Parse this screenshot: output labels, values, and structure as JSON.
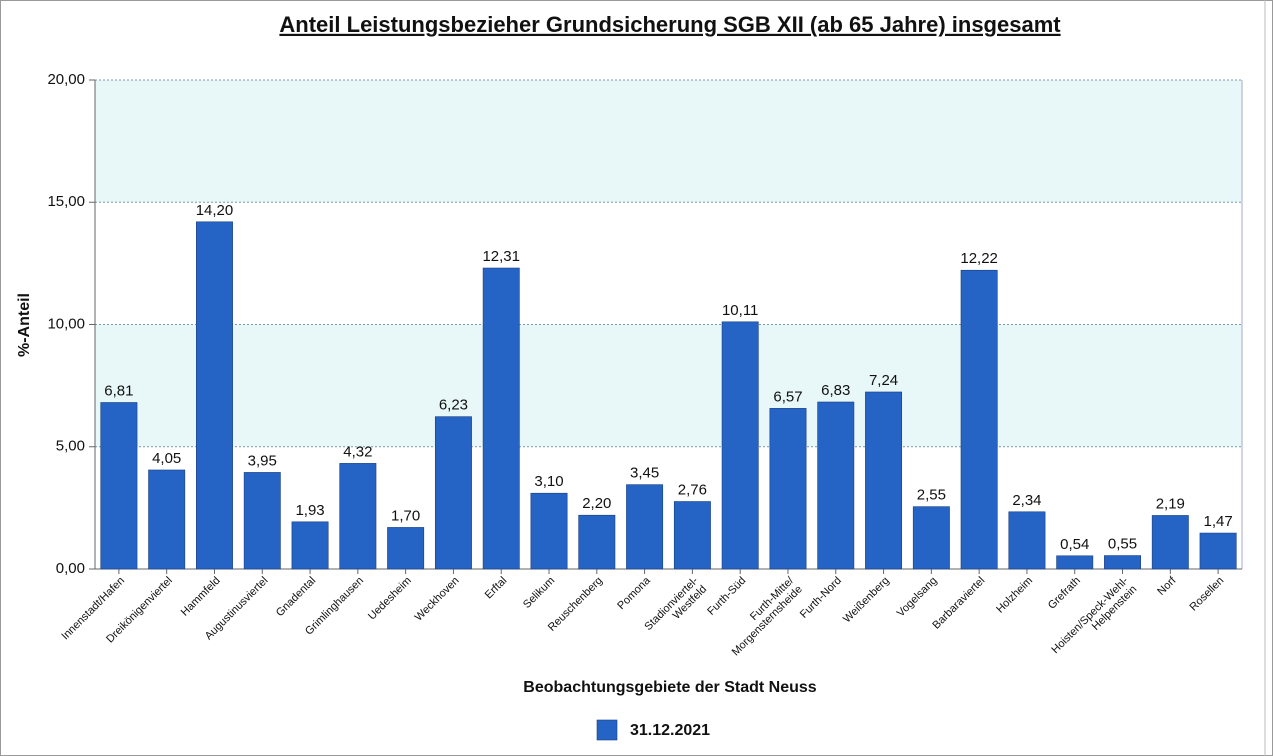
{
  "chart_data": {
    "type": "bar",
    "title": "Anteil Leistungsbezieher Grundsicherung SGB XII (ab 65 Jahre) insgesamt",
    "xlabel": "Beobachtungsgebiete der Stadt Neuss",
    "ylabel": "%-Anteil",
    "categories": [
      "Innenstadt/Hafen",
      "Dreikönigenviertel",
      "Hammfeld",
      "Augustinusviertel",
      "Gnadental",
      "Grimlinghausen",
      "Uedesheim",
      "Weckhoven",
      "Erftal",
      "Selikum",
      "Reuschenberg",
      "Pomona",
      "Stadionviertel-\nWestfeld",
      "Furth-Süd",
      "Furth-Mitte/\nMorgensternsheide",
      "Furth-Nord",
      "Weißenberg",
      "Vogelsang",
      "Barbaraviertel",
      "Holzheim",
      "Grefrath",
      "Hoisten/Speck-Wehl-\nHelpenstein",
      "Norf",
      "Rosellen"
    ],
    "series": [
      {
        "name": "31.12.2021",
        "color": "#2563c4",
        "values": [
          6.81,
          4.05,
          14.2,
          3.95,
          1.93,
          4.32,
          1.7,
          6.23,
          12.31,
          3.1,
          2.2,
          3.45,
          2.76,
          10.11,
          6.57,
          6.83,
          7.24,
          2.55,
          12.22,
          2.34,
          0.54,
          0.55,
          2.19,
          1.47
        ],
        "value_labels": [
          "6,81",
          "4,05",
          "14,20",
          "3,95",
          "1,93",
          "4,32",
          "1,70",
          "6,23",
          "12,31",
          "3,10",
          "2,20",
          "3,45",
          "2,76",
          "10,11",
          "6,57",
          "6,83",
          "7,24",
          "2,55",
          "12,22",
          "2,34",
          "0,54",
          "0,55",
          "2,19",
          "1,47"
        ]
      }
    ],
    "ylim": [
      0,
      20
    ],
    "yticks": [
      {
        "value": 0,
        "label": "0,00"
      },
      {
        "value": 5,
        "label": "5,00"
      },
      {
        "value": 10,
        "label": "10,00"
      },
      {
        "value": 15,
        "label": "15,00"
      },
      {
        "value": 20,
        "label": "20,00"
      }
    ],
    "grid": true,
    "legend": "bottom"
  }
}
